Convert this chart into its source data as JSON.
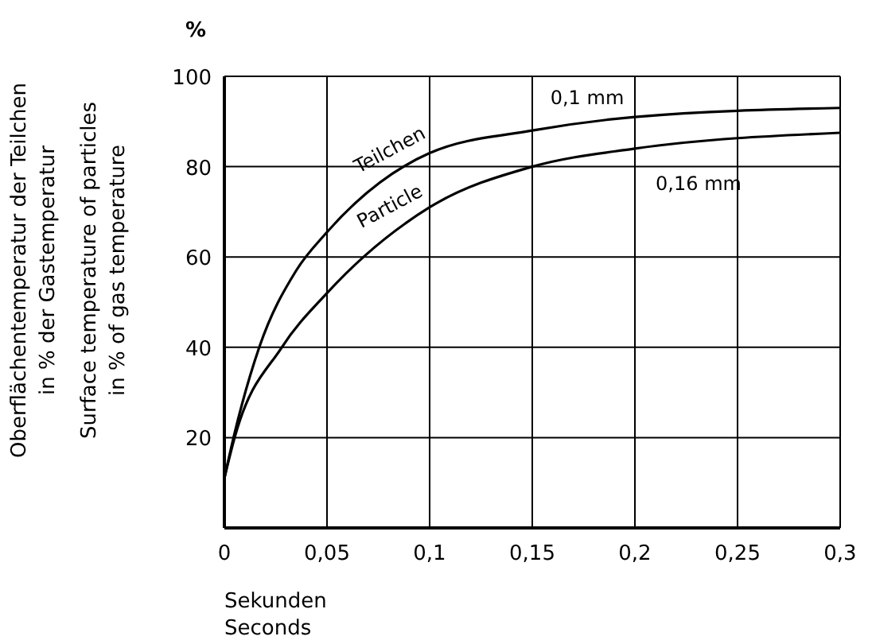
{
  "chart_data": {
    "type": "line",
    "xlabel": "Sekunden\nSeconds",
    "ylabel": "Oberflächentemperatur der Teilchen\nin % der Gastemperatur\nSurface temperature of particles\nin % of gas temperature",
    "x": [
      0,
      0.005,
      0.017,
      0.035,
      0.05,
      0.1,
      0.15,
      0.2,
      0.3
    ],
    "series": [
      {
        "name": "0,1 mm",
        "color": "#000000",
        "values": [
          11,
          21,
          40,
          57,
          65.5,
          83,
          88,
          91,
          93
        ]
      },
      {
        "name": "0,16 mm",
        "color": "#000000",
        "x": [
          0,
          0.005,
          0.028,
          0.05,
          0.1,
          0.15,
          0.2,
          0.3
        ],
        "values": [
          11,
          20,
          40,
          52,
          71,
          80,
          84,
          87.5
        ]
      }
    ],
    "xlim": [
      0,
      0.3
    ],
    "ylim": [
      0,
      100
    ],
    "xticks": [
      0,
      {
        "value": 0.05,
        "label": "0,05"
      },
      {
        "value": 0.1,
        "label": "0,1"
      },
      {
        "value": 0.15,
        "label": "0,15"
      },
      {
        "value": 0.2,
        "label": "0,2"
      },
      {
        "value": 0.25,
        "label": "0,25"
      },
      {
        "value": 0.3,
        "label": "0,3"
      }
    ],
    "yticks": [
      {
        "value": 0,
        "label": null
      },
      20,
      40,
      60,
      80,
      100
    ],
    "annotations": [
      "%",
      "Teilchen",
      "Particle"
    ],
    "grid": true,
    "marker": "none",
    "line_style": "solid"
  }
}
